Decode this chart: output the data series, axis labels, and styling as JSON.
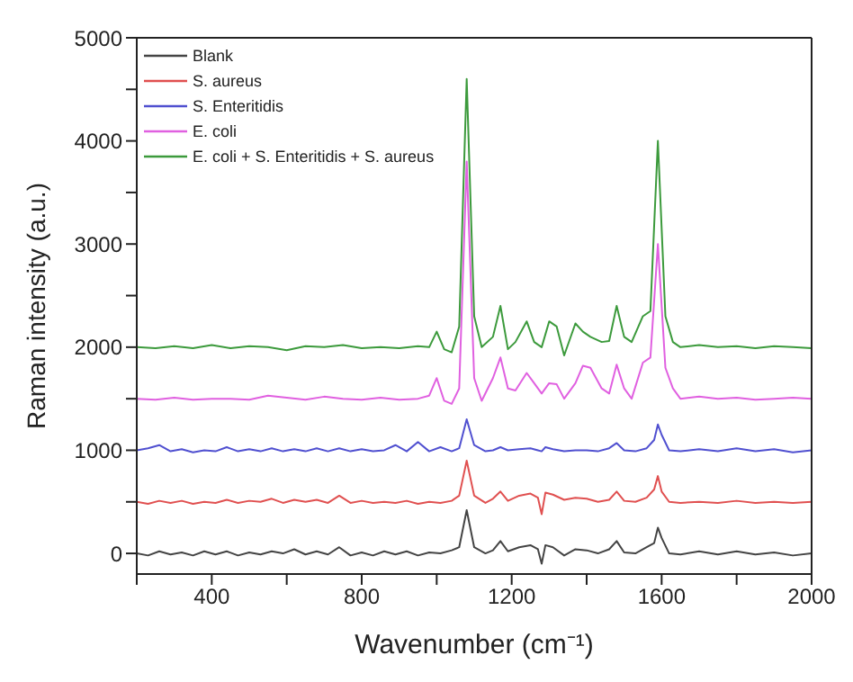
{
  "chart_data": {
    "type": "line",
    "xlabel": "Wavenumber (cm⁻¹)",
    "ylabel": "Raman intensity (a.u.)",
    "legend": "top left",
    "marker": "none",
    "line_style": "solid",
    "xlim": [
      200,
      2000
    ],
    "xticks": [
      {
        "value": 200,
        "label": null
      },
      400,
      {
        "value": 600,
        "label": null
      },
      800,
      {
        "value": 1000,
        "label": null
      },
      1200,
      {
        "value": 1400,
        "label": null
      },
      1600,
      {
        "value": 1800,
        "label": null
      },
      2000
    ],
    "ylim": [
      -200,
      5000
    ],
    "yticks": [
      0,
      {
        "value": 500,
        "label": null
      },
      1000,
      {
        "value": 1500,
        "label": null
      },
      2000,
      {
        "value": 2500,
        "label": null
      },
      3000,
      {
        "value": 3500,
        "label": null
      },
      4000,
      {
        "value": 4500,
        "label": null
      },
      5000
    ],
    "x": [
      200,
      230,
      260,
      290,
      320,
      350,
      380,
      410,
      440,
      470,
      500,
      530,
      560,
      590,
      620,
      650,
      680,
      710,
      740,
      770,
      800,
      830,
      860,
      890,
      920,
      950,
      980,
      1010,
      1040,
      1060,
      1080,
      1100,
      1130,
      1150,
      1170,
      1190,
      1220,
      1250,
      1270,
      1280,
      1290,
      1310,
      1340,
      1370,
      1400,
      1430,
      1460,
      1480,
      1500,
      1530,
      1560,
      1580,
      1590,
      1600,
      1620,
      1650,
      1700,
      1750,
      1800,
      1850,
      1900,
      1950,
      2000
    ],
    "series": [
      {
        "name": "Blank",
        "color": "#444444",
        "values": [
          0,
          -20,
          20,
          -10,
          10,
          -20,
          20,
          -10,
          20,
          -20,
          10,
          -10,
          20,
          0,
          40,
          -10,
          20,
          -10,
          60,
          -20,
          10,
          -20,
          20,
          -10,
          20,
          -20,
          10,
          0,
          30,
          60,
          420,
          60,
          0,
          30,
          120,
          20,
          60,
          80,
          40,
          -100,
          80,
          60,
          -20,
          40,
          30,
          0,
          40,
          120,
          10,
          0,
          60,
          100,
          250,
          150,
          0,
          -10,
          20,
          -10,
          20,
          -10,
          10,
          -20,
          0
        ]
      },
      {
        "name": "S. aureus",
        "color": "#e05050",
        "values": [
          500,
          480,
          510,
          490,
          510,
          480,
          500,
          490,
          520,
          490,
          510,
          500,
          530,
          490,
          520,
          500,
          520,
          490,
          560,
          490,
          510,
          490,
          500,
          490,
          510,
          480,
          500,
          490,
          510,
          560,
          900,
          560,
          490,
          530,
          600,
          510,
          560,
          580,
          540,
          380,
          590,
          570,
          520,
          540,
          530,
          500,
          520,
          600,
          510,
          500,
          540,
          620,
          750,
          600,
          500,
          490,
          500,
          490,
          510,
          490,
          500,
          490,
          500
        ]
      },
      {
        "name": "S. Enteritidis",
        "color": "#5050d0",
        "values": [
          1000,
          1020,
          1050,
          990,
          1010,
          980,
          1000,
          990,
          1030,
          990,
          1010,
          990,
          1020,
          990,
          1010,
          990,
          1020,
          990,
          1020,
          990,
          1010,
          990,
          1000,
          1050,
          990,
          1080,
          990,
          1030,
          990,
          1020,
          1300,
          1050,
          990,
          1000,
          1030,
          1000,
          1010,
          1020,
          1000,
          990,
          1030,
          1010,
          990,
          1000,
          1000,
          990,
          1020,
          1070,
          1000,
          990,
          1020,
          1100,
          1250,
          1150,
          1000,
          990,
          1010,
          990,
          1020,
          990,
          1010,
          980,
          1000
        ]
      },
      {
        "name": "E. coli",
        "color": "#e060e0",
        "x": [
          200,
          250,
          300,
          350,
          400,
          450,
          500,
          550,
          600,
          650,
          700,
          750,
          800,
          850,
          900,
          950,
          980,
          1000,
          1020,
          1040,
          1060,
          1080,
          1100,
          1120,
          1150,
          1170,
          1190,
          1210,
          1240,
          1260,
          1280,
          1300,
          1320,
          1340,
          1370,
          1390,
          1410,
          1440,
          1460,
          1480,
          1500,
          1520,
          1550,
          1570,
          1590,
          1610,
          1630,
          1650,
          1700,
          1750,
          1800,
          1850,
          1900,
          1950,
          2000
        ],
        "values": [
          1500,
          1490,
          1510,
          1490,
          1500,
          1500,
          1490,
          1530,
          1510,
          1490,
          1520,
          1500,
          1490,
          1510,
          1490,
          1500,
          1530,
          1700,
          1480,
          1450,
          1600,
          3800,
          1700,
          1480,
          1700,
          1900,
          1600,
          1580,
          1750,
          1650,
          1550,
          1650,
          1640,
          1500,
          1650,
          1820,
          1800,
          1600,
          1550,
          1830,
          1600,
          1500,
          1850,
          1900,
          3000,
          1800,
          1600,
          1500,
          1520,
          1500,
          1510,
          1490,
          1500,
          1510,
          1500
        ]
      },
      {
        "name": "E. coli + S. Enteritidis + S. aureus",
        "color": "#3c9a3c",
        "x": [
          200,
          250,
          300,
          350,
          400,
          450,
          500,
          550,
          600,
          650,
          700,
          750,
          800,
          850,
          900,
          950,
          980,
          1000,
          1020,
          1040,
          1060,
          1080,
          1100,
          1120,
          1150,
          1170,
          1190,
          1210,
          1240,
          1260,
          1280,
          1300,
          1320,
          1340,
          1370,
          1390,
          1410,
          1440,
          1460,
          1480,
          1500,
          1520,
          1550,
          1570,
          1590,
          1610,
          1630,
          1650,
          1700,
          1750,
          1800,
          1850,
          1900,
          1950,
          2000
        ],
        "values": [
          2000,
          1990,
          2010,
          1990,
          2020,
          1990,
          2010,
          2000,
          1970,
          2010,
          2000,
          2020,
          1990,
          2000,
          1990,
          2010,
          2000,
          2150,
          1980,
          1950,
          2200,
          4600,
          2300,
          2000,
          2100,
          2400,
          1980,
          2050,
          2250,
          2050,
          2000,
          2250,
          2200,
          1920,
          2230,
          2150,
          2100,
          2050,
          2060,
          2400,
          2100,
          2050,
          2300,
          2350,
          4000,
          2300,
          2050,
          2000,
          2020,
          2000,
          2010,
          1990,
          2010,
          2000,
          1990
        ]
      }
    ]
  }
}
